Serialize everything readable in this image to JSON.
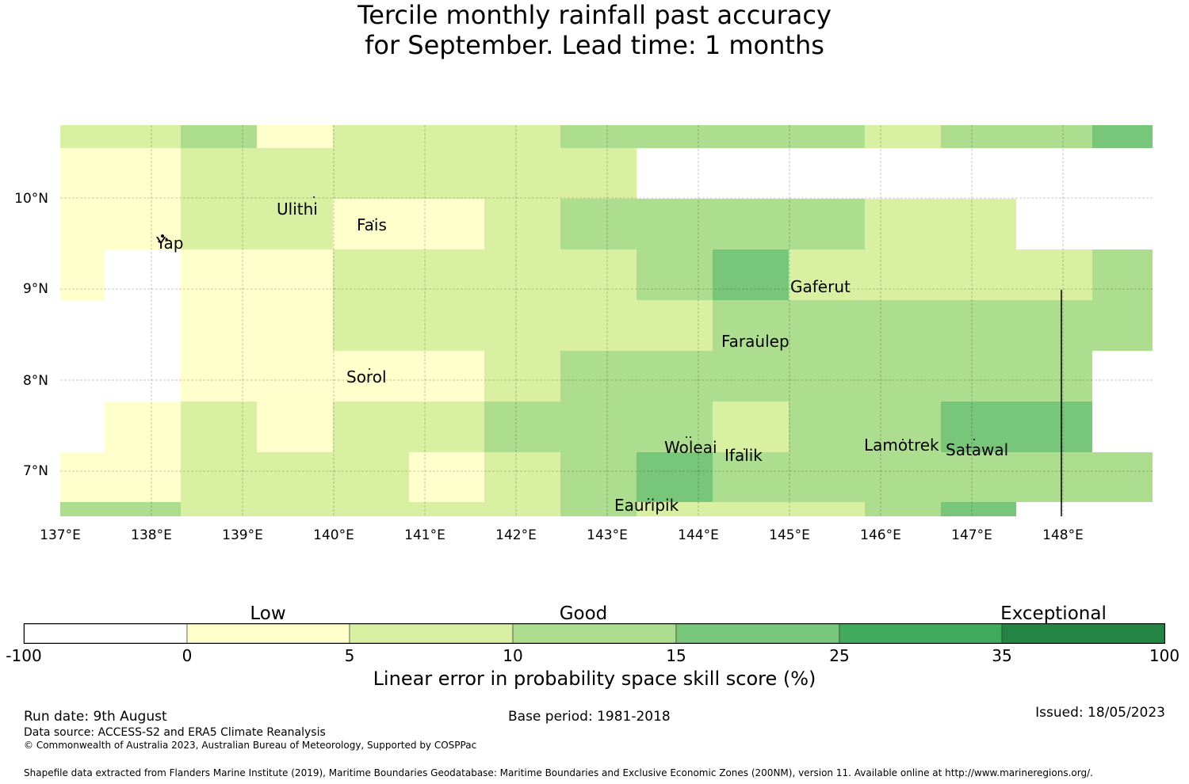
{
  "title_line1": "Tercile monthly rainfall past accuracy",
  "title_line2": "for September. Lead time: 1 months",
  "map": {
    "lon_ticks": [
      "137°E",
      "138°E",
      "139°E",
      "140°E",
      "141°E",
      "142°E",
      "143°E",
      "144°E",
      "145°E",
      "146°E",
      "147°E",
      "148°E"
    ],
    "lat_ticks": [
      "10°N",
      "9°N",
      "8°N",
      "7°N"
    ],
    "places": [
      {
        "name": "Ulithi"
      },
      {
        "name": "Fais"
      },
      {
        "name": "Yap"
      },
      {
        "name": "Gaferut"
      },
      {
        "name": "Faraulep"
      },
      {
        "name": "Sorol"
      },
      {
        "name": "Woleai"
      },
      {
        "name": "Ifalik"
      },
      {
        "name": "Lamotrek"
      },
      {
        "name": "Satawal"
      },
      {
        "name": "Eauripik"
      }
    ]
  },
  "colorbar": {
    "categories": [
      "Low",
      "Good",
      "Exceptional"
    ],
    "ticks": [
      "-100",
      "0",
      "5",
      "10",
      "15",
      "25",
      "35",
      "100"
    ],
    "colors": [
      "#ffffff",
      "#ffffcc",
      "#d9f0a3",
      "#addd8e",
      "#78c679",
      "#41ab5d",
      "#238443"
    ],
    "title": "Linear error in probability space skill score (%)"
  },
  "footer": {
    "run_date": "Run date: 9th August",
    "base_period": "Base period: 1981-2018",
    "issued": "Issued: 18/05/2023",
    "data_source": "Data source: ACCESS-S2 and ERA5 Climate Reanalysis",
    "copyright": "© Commonwealth of Australia 2023, Australian Bureau of Meteorology, Supported by COSPPac",
    "shapefile": "Shapefile data extracted from Flanders Marine Institute (2019), Maritime Boundaries Geodatabase: Maritime Boundaries and Exclusive Economic Zones (200NM), version 11. Available online at http://www.marineregions.org/."
  }
}
